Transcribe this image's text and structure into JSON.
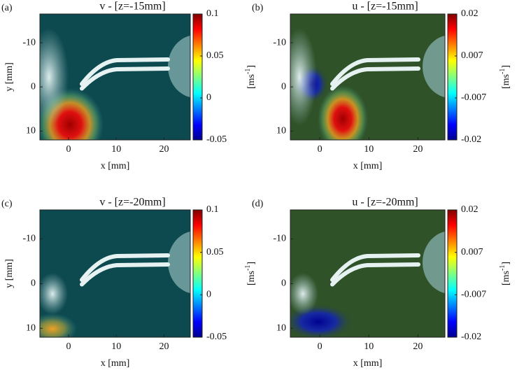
{
  "chart_data": [
    {
      "type": "heatmap",
      "panel_label": "(a)",
      "title": "v - [z=-15mm]",
      "xlabel": "x [mm]",
      "ylabel": "y [mm]",
      "xlim": [
        -6,
        25.5
      ],
      "ylim": [
        12,
        -16.5
      ],
      "xticks": [
        0,
        10,
        20
      ],
      "yticks": [
        -10,
        0,
        10
      ],
      "clim": [
        -0.05,
        0.1
      ],
      "cticks": [
        -0.05,
        0,
        0.05,
        0.1
      ],
      "colorbar_label": [
        "[ms",
        "-1",
        "]"
      ]
    },
    {
      "type": "heatmap",
      "panel_label": "(b)",
      "title": "u - [z=-15mm]",
      "xlabel": "x [mm]",
      "xlim": [
        -6,
        25.5
      ],
      "ylim": [
        12,
        -16.5
      ],
      "xticks": [
        0,
        10,
        20
      ],
      "yticks": [
        -10,
        0,
        10
      ],
      "clim": [
        -0.02,
        0.02
      ],
      "cticks": [
        -0.02,
        {
          "value": -0.00667,
          "label": "-0.007"
        },
        {
          "value": 0.00667,
          "label": "0.007"
        },
        0.02
      ],
      "colorbar_label": [
        "[ms",
        "-1",
        "]"
      ]
    },
    {
      "type": "heatmap",
      "panel_label": "(c)",
      "title": "v - [z=-20mm]",
      "xlabel": "x [mm]",
      "ylabel": "y [mm]",
      "xlim": [
        -6,
        25.5
      ],
      "ylim": [
        12,
        -16.5
      ],
      "xticks": [
        0,
        10,
        20
      ],
      "yticks": [
        -10,
        0,
        10
      ],
      "clim": [
        -0.05,
        0.1
      ],
      "cticks": [
        -0.05,
        0,
        0.05,
        0.1
      ],
      "colorbar_label": [
        "[ms",
        "-1",
        "]"
      ]
    },
    {
      "type": "heatmap",
      "panel_label": "(d)",
      "title": "u - [z=-20mm]",
      "xlabel": "x [mm]",
      "xlim": [
        -6,
        25.5
      ],
      "ylim": [
        12,
        -16.5
      ],
      "xticks": [
        0,
        10,
        20
      ],
      "yticks": [
        -10,
        0,
        10
      ],
      "clim": [
        -0.02,
        0.02
      ],
      "cticks": [
        -0.02,
        {
          "value": -0.00667,
          "label": "-0.007"
        },
        {
          "value": 0.00667,
          "label": "0.007"
        },
        0.02
      ],
      "colorbar_label": [
        "[ms",
        "-1",
        "]"
      ]
    }
  ]
}
